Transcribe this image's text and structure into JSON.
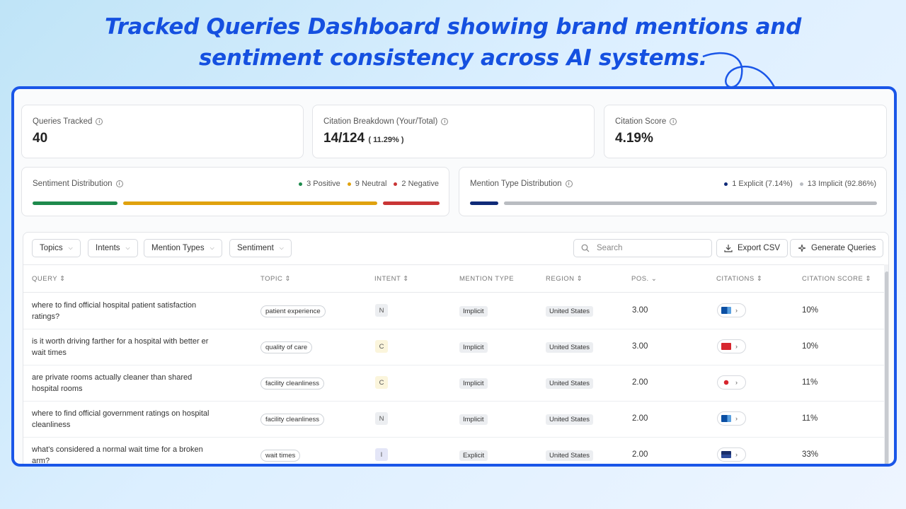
{
  "headline": {
    "line1": "Tracked Queries Dashboard showing brand mentions and",
    "line2": "sentiment consistency across AI systems."
  },
  "stats": {
    "queries_tracked": {
      "label": "Queries Tracked",
      "value": "40"
    },
    "citation_breakdown": {
      "label": "Citation Breakdown (Your/Total)",
      "value": "14/124",
      "percent": "( 11.29% )"
    },
    "citation_score": {
      "label": "Citation Score",
      "value": "4.19%"
    }
  },
  "sentiment": {
    "label": "Sentiment Distribution",
    "positive": {
      "text": "3 Positive",
      "count": 3,
      "color": "#1e8a4c"
    },
    "neutral": {
      "text": "9 Neutral",
      "count": 9,
      "color": "#e0a20e"
    },
    "negative": {
      "text": "2 Negative",
      "count": 2,
      "color": "#c93535"
    }
  },
  "mention_type": {
    "label": "Mention Type Distribution",
    "explicit": {
      "text": "1 Explicit (7.14%)",
      "fraction": 0.0714,
      "color": "#0f2a78"
    },
    "implicit": {
      "text": "13 Implicit (92.86%)",
      "fraction": 0.9286,
      "color": "#b9bcc1"
    }
  },
  "filters": {
    "topics": "Topics",
    "intents": "Intents",
    "mention_types": "Mention Types",
    "sentiment": "Sentiment",
    "search_placeholder": "Search",
    "export": "Export CSV",
    "generate": "Generate Queries"
  },
  "columns": {
    "query": "QUERY",
    "topic": "TOPIC",
    "intent": "INTENT",
    "mention_type": "MENTION TYPE",
    "region": "REGION",
    "pos": "POS.",
    "citations": "CITATIONS",
    "citation_score": "CITATION SCORE"
  },
  "rows": [
    {
      "query": "where to find official hospital patient satisfaction ratings?",
      "topic": "patient experience",
      "intent": "N",
      "mention": "Implicit",
      "region": "United States",
      "pos": "3.00",
      "favicon": "blue-site-icon",
      "score": "10%"
    },
    {
      "query": "is it worth driving farther for a hospital with better er wait times",
      "topic": "quality of care",
      "intent": "C",
      "mention": "Implicit",
      "region": "United States",
      "pos": "3.00",
      "favicon": "red-site-icon",
      "score": "10%"
    },
    {
      "query": "are private rooms actually cleaner than shared hospital rooms",
      "topic": "facility cleanliness",
      "intent": "C",
      "mention": "Implicit",
      "region": "United States",
      "pos": "2.00",
      "favicon": "redbird-site-icon",
      "score": "11%"
    },
    {
      "query": "where to find official government ratings on hospital cleanliness",
      "topic": "facility cleanliness",
      "intent": "N",
      "mention": "Implicit",
      "region": "United States",
      "pos": "2.00",
      "favicon": "blue-site-icon",
      "score": "11%"
    },
    {
      "query": "what's considered a normal wait time for a broken arm?",
      "topic": "wait times",
      "intent": "I",
      "mention": "Explicit",
      "region": "United States",
      "pos": "2.00",
      "favicon": "navy-site-icon",
      "score": "33%"
    }
  ]
}
